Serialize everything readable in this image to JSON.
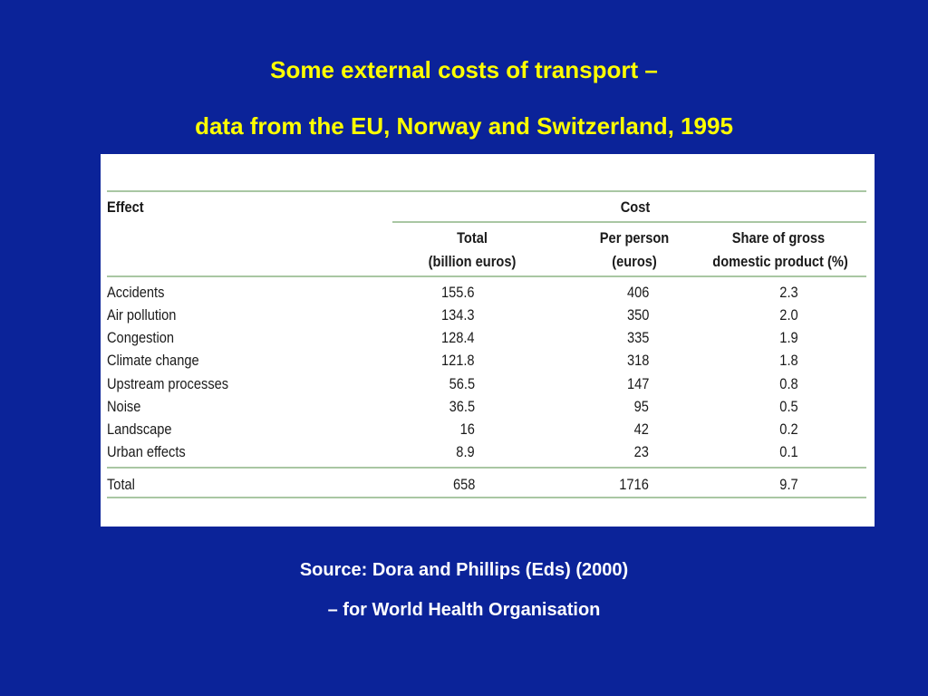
{
  "title": {
    "line1": "Some external costs of transport –",
    "line2": "data from the EU, Norway and Switzerland, 1995"
  },
  "table": {
    "effect_header": "Effect",
    "cost_header": "Cost",
    "col_total": [
      "Total",
      "(billion euros)"
    ],
    "col_per_person": [
      "Per person",
      "(euros)"
    ],
    "col_share": [
      "Share of gross",
      "domestic product (%)"
    ],
    "rows": [
      {
        "effect": "Accidents",
        "total": "155.6",
        "per_person": "406",
        "share": "2.3"
      },
      {
        "effect": "Air pollution",
        "total": "134.3",
        "per_person": "350",
        "share": "2.0"
      },
      {
        "effect": "Congestion",
        "total": "128.4",
        "per_person": "335",
        "share": "1.9"
      },
      {
        "effect": "Climate change",
        "total": "121.8",
        "per_person": "318",
        "share": "1.8"
      },
      {
        "effect": "Upstream processes",
        "total": "56.5",
        "per_person": "147",
        "share": "0.8"
      },
      {
        "effect": "Noise",
        "total": "36.5",
        "per_person": "95",
        "share": "0.5"
      },
      {
        "effect": "Landscape",
        "total": "16",
        "per_person": "42",
        "share": "0.2"
      },
      {
        "effect": "Urban effects",
        "total": "8.9",
        "per_person": "23",
        "share": "0.1"
      }
    ],
    "total_row": {
      "effect": "Total",
      "total": "658",
      "per_person": "1716",
      "share": "9.7"
    }
  },
  "source": {
    "line1": "Source: Dora and Phillips (Eds) (2000)",
    "line2": "– for World Health Organisation"
  },
  "colors": {
    "background": "#0b2399",
    "title": "#ffff00",
    "source": "#ffffff",
    "rule": "#a9c7a3"
  }
}
